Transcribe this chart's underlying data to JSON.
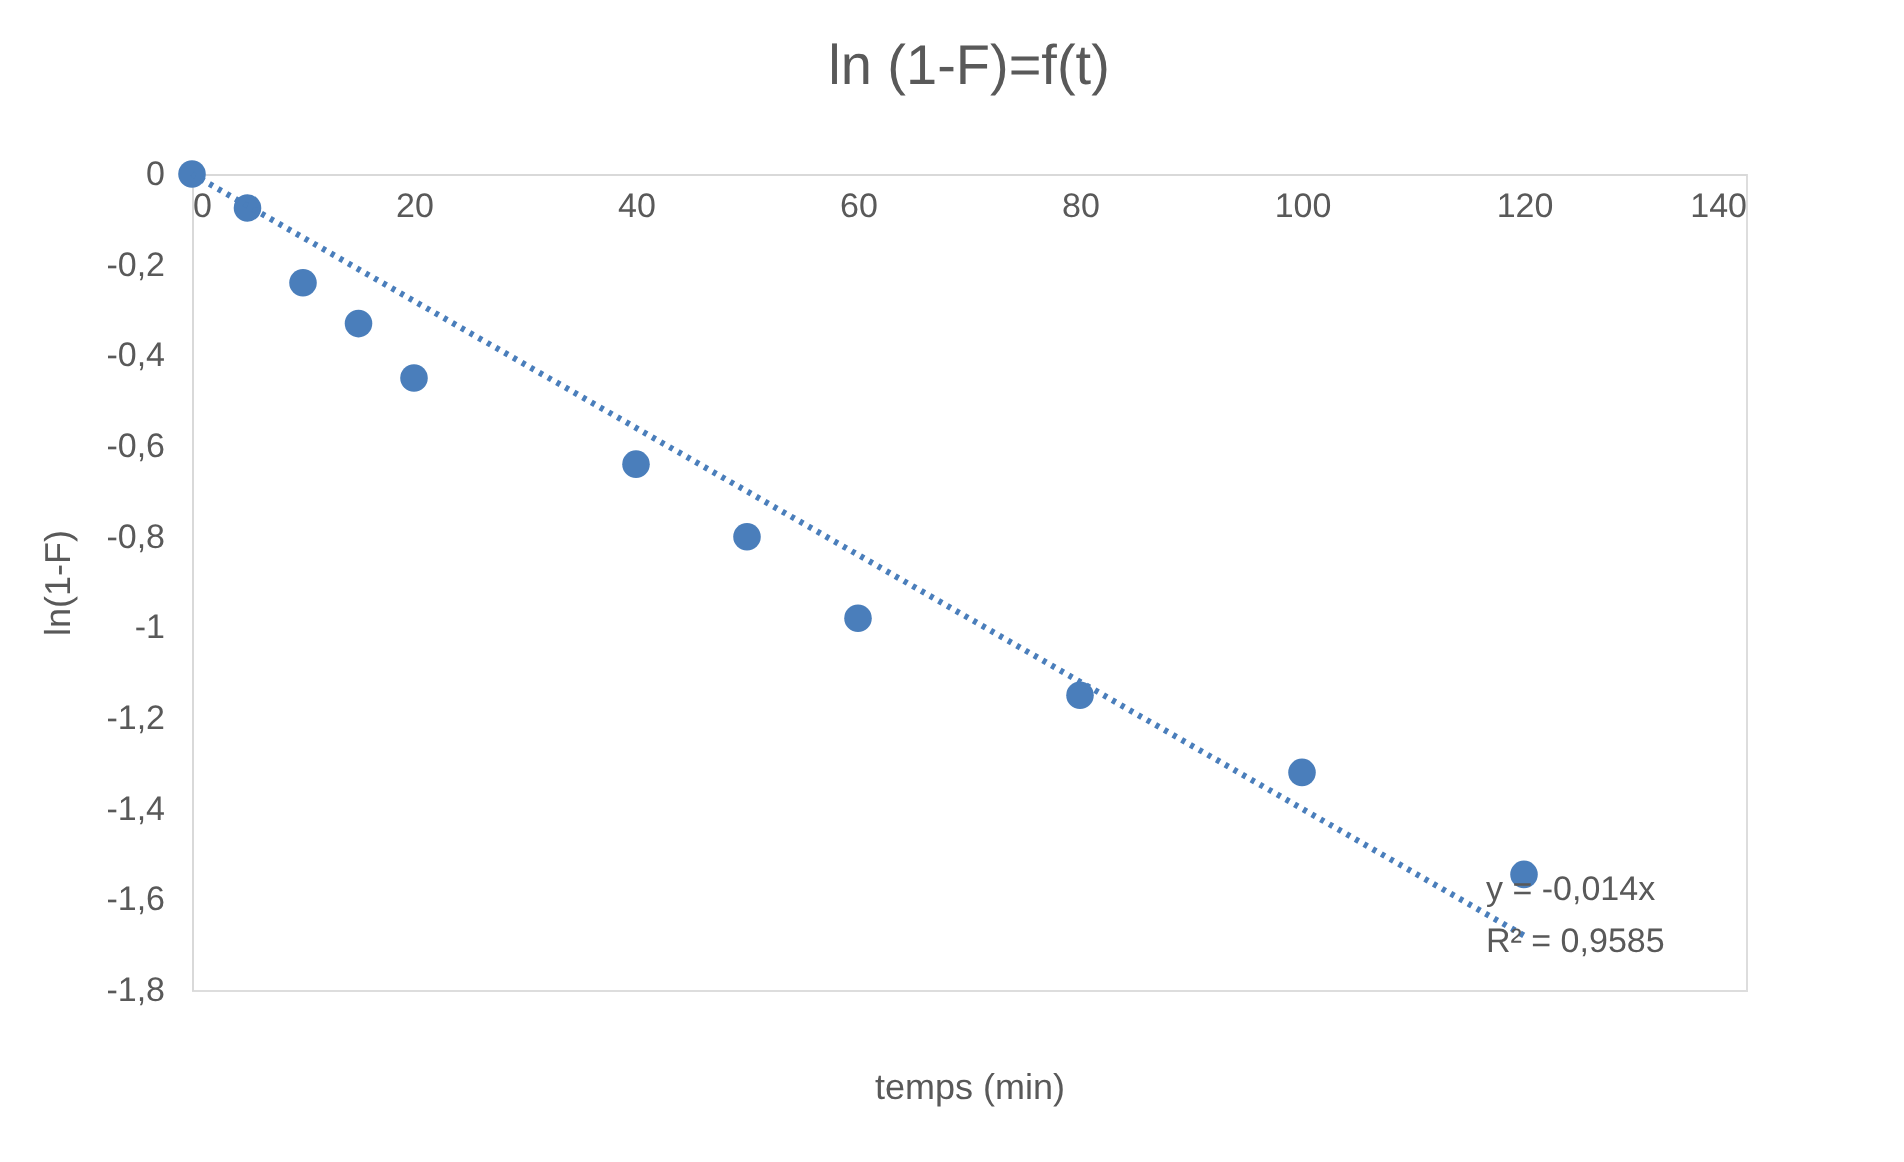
{
  "chart_data": {
    "type": "scatter",
    "title": "ln (1-F)=f(t)",
    "xlabel": "temps (min)",
    "ylabel": "ln(1-F)",
    "xlim": [
      0,
      140
    ],
    "xticks": [
      0,
      20,
      40,
      60,
      80,
      100,
      120,
      140
    ],
    "ylim": [
      -1.8,
      0
    ],
    "yticks": [
      0,
      {
        "value": -0.2,
        "label": "-0,2"
      },
      {
        "value": -0.4,
        "label": "-0,4"
      },
      {
        "value": -0.6,
        "label": "-0,6"
      },
      {
        "value": -0.8,
        "label": "-0,8"
      },
      -1,
      {
        "value": -1.2,
        "label": "-1,2"
      },
      {
        "value": -1.4,
        "label": "-1,4"
      },
      {
        "value": -1.6,
        "label": "-1,6"
      },
      {
        "value": -1.8,
        "label": "-1,8"
      }
    ],
    "grid": false,
    "marker": "circle",
    "series": [
      {
        "color": "#4a7ebb",
        "x": [
          0,
          5,
          10,
          15,
          20,
          40,
          50,
          60,
          80,
          100,
          120
        ],
        "values": [
          0,
          -0.075,
          -0.24,
          -0.33,
          -0.45,
          -0.64,
          -0.8,
          -0.98,
          -1.15,
          -1.32,
          -1.545
        ]
      },
      {
        "type": "line",
        "color": "#4a7ebb",
        "line_style": "dotted",
        "marker": "none",
        "x": [
          0,
          120
        ],
        "values": [
          0,
          -1.68
        ]
      }
    ],
    "annotations": [
      "y = -0,014x",
      "R² = 0,9585"
    ]
  }
}
